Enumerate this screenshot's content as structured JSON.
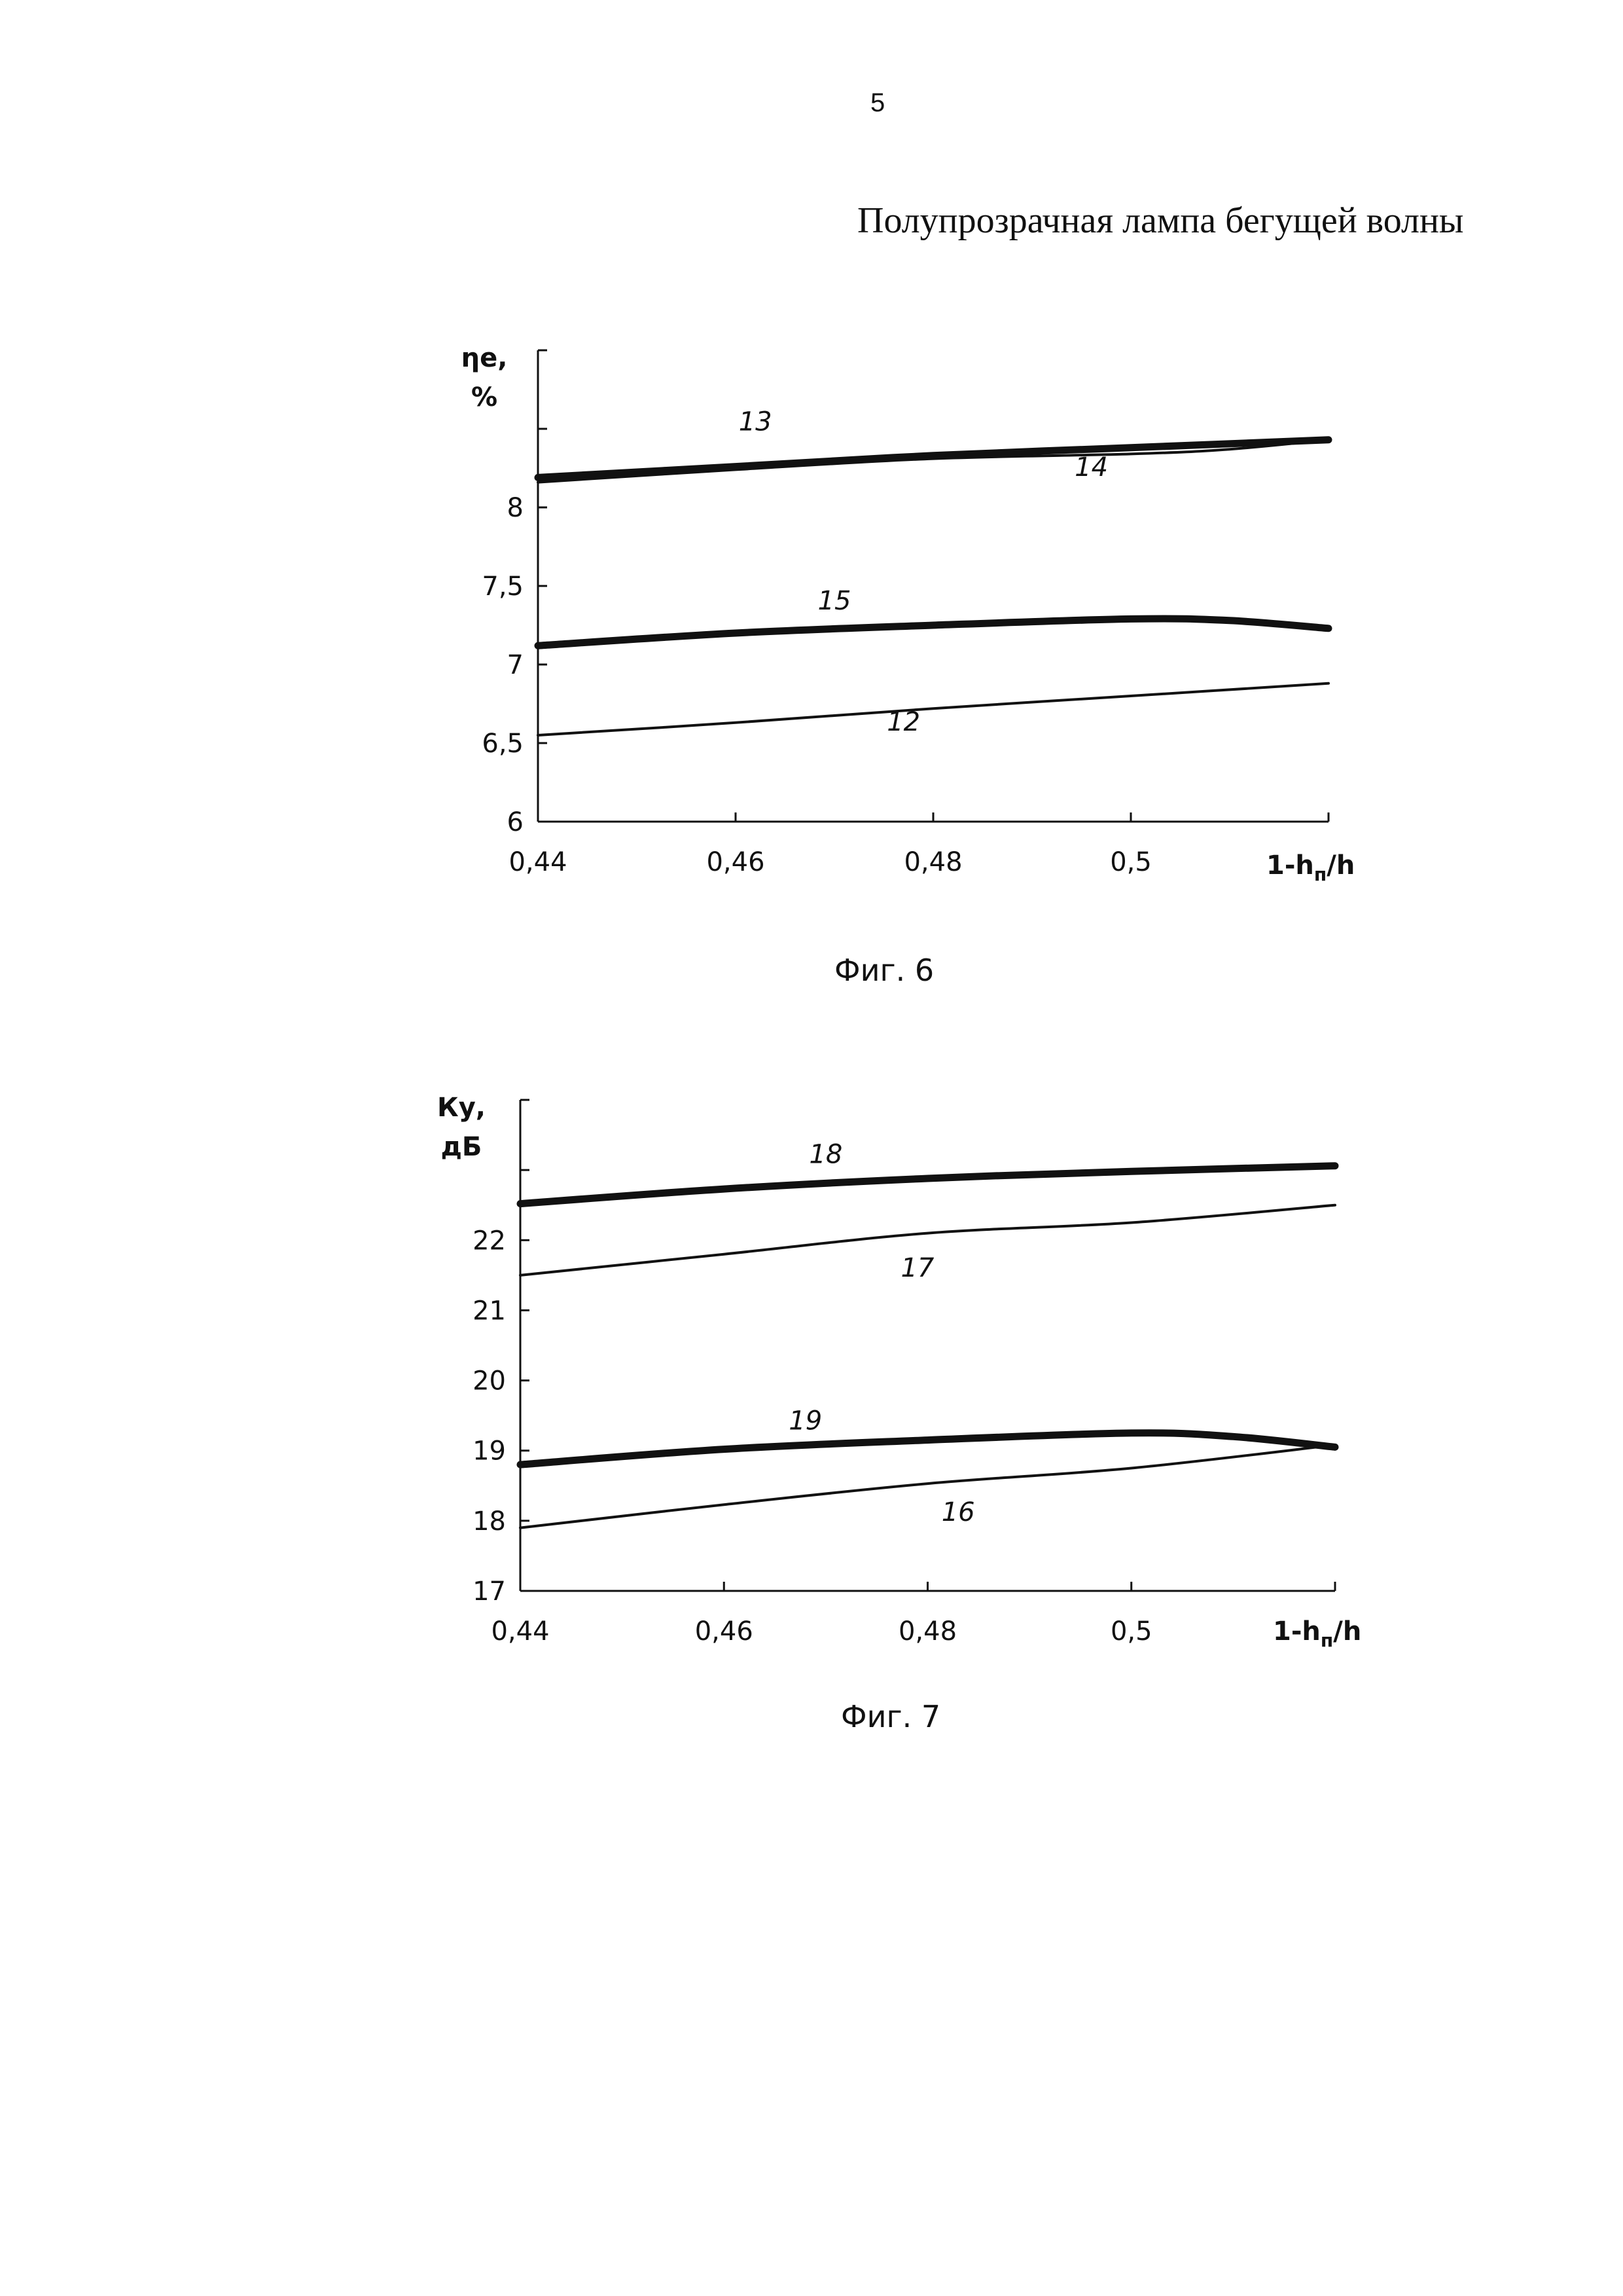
{
  "page_number": "5",
  "doc_title": "Полупрозрачная лампа бегущей волны",
  "captions": [
    "Фиг. 6",
    "Фиг. 7"
  ],
  "chart_data": [
    {
      "type": "line",
      "caption": "Фиг. 6",
      "ylabel_lines": [
        "ηe,",
        "%"
      ],
      "xlabel": "1-hп/h",
      "xlim": [
        0.44,
        0.52
      ],
      "ylim": [
        6,
        9
      ],
      "x_ticks": [
        0.44,
        0.46,
        0.48,
        0.5,
        0.52
      ],
      "x_tick_labels": [
        "0,44",
        "0,46",
        "0,48",
        "0,5",
        ""
      ],
      "y_ticks": [
        6,
        6.5,
        7,
        7.5,
        8,
        8.5,
        9
      ],
      "y_tick_labels": [
        "6",
        "6,5",
        "7",
        "7,5",
        "8",
        "",
        ""
      ],
      "series": [
        {
          "name": "12",
          "weight": "thin",
          "x": [
            0.44,
            0.46,
            0.48,
            0.5,
            0.52
          ],
          "y": [
            6.55,
            6.63,
            6.72,
            6.8,
            6.88
          ]
        },
        {
          "name": "13",
          "weight": "thick",
          "x": [
            0.44,
            0.46,
            0.48,
            0.5,
            0.52
          ],
          "y": [
            8.19,
            8.26,
            8.33,
            8.38,
            8.43
          ]
        },
        {
          "name": "14",
          "weight": "thin",
          "x": [
            0.44,
            0.46,
            0.48,
            0.5,
            0.51,
            0.52
          ],
          "y": [
            8.16,
            8.24,
            8.31,
            8.34,
            8.37,
            8.43
          ]
        },
        {
          "name": "15",
          "weight": "thick",
          "x": [
            0.44,
            0.46,
            0.48,
            0.5,
            0.51,
            0.52
          ],
          "y": [
            7.12,
            7.2,
            7.25,
            7.29,
            7.28,
            7.23
          ]
        }
      ],
      "labels": [
        {
          "text": "13",
          "x": 0.462,
          "y": 8.49
        },
        {
          "text": "14",
          "x": 0.496,
          "y": 8.2
        },
        {
          "text": "15",
          "x": 0.47,
          "y": 7.35
        },
        {
          "text": "12",
          "x": 0.477,
          "y": 6.58
        }
      ]
    },
    {
      "type": "line",
      "caption": "Фиг. 7",
      "ylabel_lines": [
        "Ку,",
        "дБ"
      ],
      "xlabel": "1-hп/h",
      "xlim": [
        0.44,
        0.52
      ],
      "ylim": [
        17,
        24
      ],
      "x_ticks": [
        0.44,
        0.46,
        0.48,
        0.5,
        0.52
      ],
      "x_tick_labels": [
        "0,44",
        "0,46",
        "0,48",
        "0,5",
        ""
      ],
      "y_ticks": [
        17,
        18,
        19,
        20,
        21,
        22,
        23,
        24
      ],
      "y_tick_labels": [
        "17",
        "18",
        "19",
        "20",
        "21",
        "22",
        "",
        ""
      ],
      "series": [
        {
          "name": "16",
          "weight": "thin",
          "x": [
            0.44,
            0.46,
            0.48,
            0.5,
            0.52
          ],
          "y": [
            17.9,
            18.23,
            18.53,
            18.75,
            19.08
          ]
        },
        {
          "name": "17",
          "weight": "thin",
          "x": [
            0.44,
            0.46,
            0.48,
            0.5,
            0.52
          ],
          "y": [
            21.5,
            21.8,
            22.1,
            22.25,
            22.5
          ]
        },
        {
          "name": "18",
          "weight": "thick",
          "x": [
            0.44,
            0.46,
            0.48,
            0.5,
            0.52
          ],
          "y": [
            22.52,
            22.73,
            22.88,
            22.98,
            23.06
          ]
        },
        {
          "name": "19",
          "weight": "thick",
          "x": [
            0.44,
            0.46,
            0.48,
            0.5,
            0.51,
            0.52
          ],
          "y": [
            18.8,
            19.02,
            19.15,
            19.25,
            19.2,
            19.05
          ]
        }
      ],
      "labels": [
        {
          "text": "18",
          "x": 0.47,
          "y": 23.1
        },
        {
          "text": "17",
          "x": 0.479,
          "y": 21.48
        },
        {
          "text": "19",
          "x": 0.468,
          "y": 19.3
        },
        {
          "text": "16",
          "x": 0.483,
          "y": 18.0
        }
      ]
    }
  ]
}
